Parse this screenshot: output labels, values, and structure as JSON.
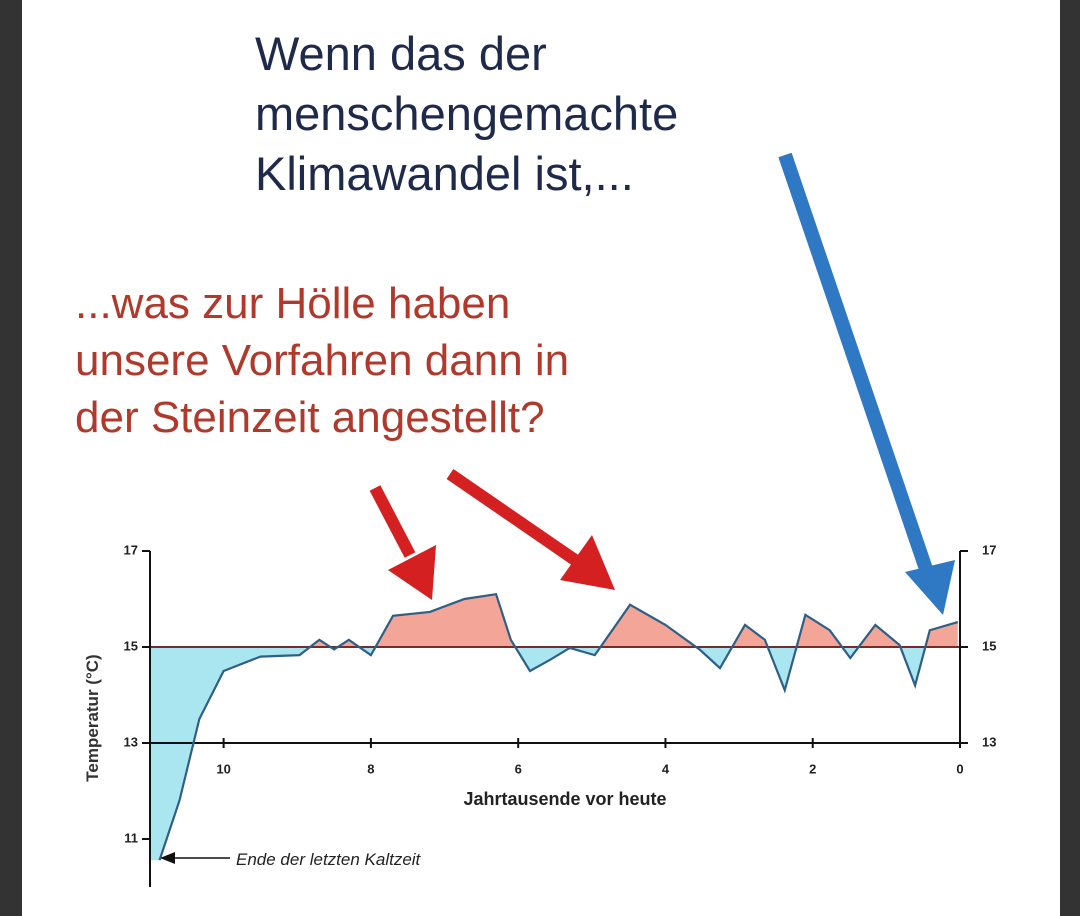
{
  "chart_data": {
    "type": "line",
    "headline": [
      "Wenn das der",
      "menschengemachte",
      "Klimawandel ist,..."
    ],
    "subheadline": [
      "...was zur Hölle haben",
      "unsere Vorfahren dann in",
      "der Steinzeit angestellt?"
    ],
    "xlabel": "Jahrtausende vor heute",
    "ylabel": "Temperatur (°C)",
    "note": "Ende der letzten Kaltzeit",
    "x": [
      10.87,
      10.6,
      10.33,
      10.0,
      9.5,
      8.97,
      8.7,
      8.5,
      8.3,
      8.0,
      7.7,
      7.2,
      6.73,
      6.3,
      6.1,
      5.84,
      5.57,
      5.3,
      4.96,
      4.48,
      4.0,
      3.53,
      3.26,
      2.92,
      2.65,
      2.38,
      2.1,
      1.77,
      1.49,
      1.15,
      0.82,
      0.61,
      0.41,
      0.03
    ],
    "values": [
      10.56,
      11.8,
      13.5,
      14.5,
      14.8,
      14.83,
      15.15,
      14.95,
      15.15,
      14.83,
      15.65,
      15.73,
      16.0,
      16.1,
      15.15,
      14.5,
      14.73,
      14.98,
      14.83,
      15.88,
      15.46,
      14.94,
      14.56,
      15.46,
      15.15,
      14.1,
      15.67,
      15.35,
      14.77,
      15.46,
      15.04,
      14.2,
      15.35,
      15.52
    ],
    "color": "#2f5f86",
    "above_color": "#f3a597",
    "below_color": "#a9e6ef",
    "baseline": 15,
    "hlines": [
      13,
      15
    ],
    "xlim": [
      11,
      0
    ],
    "xticks": [
      10,
      8,
      6,
      4,
      2,
      0
    ],
    "ylim": [
      10,
      17
    ],
    "yticks": [
      11,
      13,
      15,
      17
    ]
  }
}
